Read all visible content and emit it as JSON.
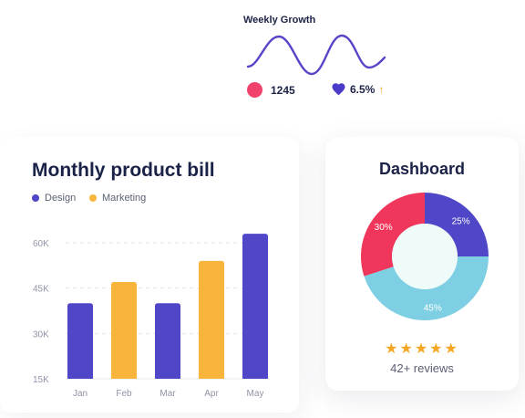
{
  "growth": {
    "title": "Weekly Growth",
    "count": "1245",
    "percent": "6.5%",
    "trend_icon": "arrow-up-icon",
    "colors": {
      "wave": "#5a45c9",
      "dot": "#f0426b",
      "heart": "#4a3cc8",
      "arrow": "#f5a623"
    }
  },
  "bill": {
    "title": "Monthly product bill",
    "legend": [
      {
        "label": "Design",
        "color": "#4f46c8"
      },
      {
        "label": "Marketing",
        "color": "#f9b43c"
      }
    ]
  },
  "dashboard": {
    "title": "Dashboard",
    "stars": 5,
    "reviews": "42+ reviews"
  },
  "chart_data": [
    {
      "type": "bar",
      "title": "Monthly product bill",
      "categories": [
        "Jan",
        "Feb",
        "Mar",
        "Apr",
        "May"
      ],
      "values": [
        40,
        47,
        40,
        54,
        63
      ],
      "series_of_bar": [
        "Design",
        "Marketing",
        "Design",
        "Marketing",
        "Design"
      ],
      "ylim": [
        15,
        60
      ],
      "yticks": [
        15,
        30,
        45,
        60
      ],
      "ytick_labels": [
        "15K",
        "30K",
        "45K",
        "60K"
      ],
      "grid": "dashed horizontal",
      "colors": {
        "Design": "#4f46c8",
        "Marketing": "#f9b43c"
      }
    },
    {
      "type": "pie",
      "subtype": "donut",
      "slices": [
        {
          "label": "25%",
          "value": 25,
          "color": "#4f46c8"
        },
        {
          "label": "45%",
          "value": 45,
          "color": "#7ecfe3"
        },
        {
          "label": "30%",
          "value": 30,
          "color": "#f0365a"
        }
      ]
    }
  ]
}
